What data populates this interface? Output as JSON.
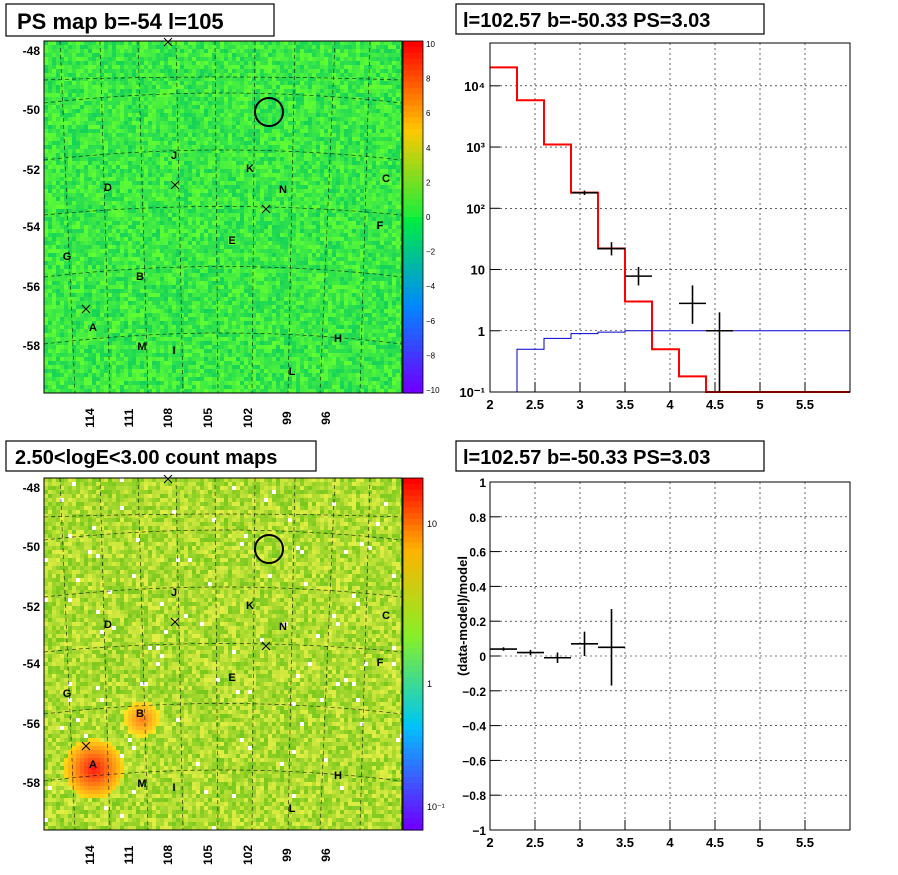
{
  "panels": {
    "tl": {
      "title": "PS map b=-54 l=105",
      "y_ticks": [
        "-48",
        "-50",
        "-52",
        "-54",
        "-56",
        "-58"
      ],
      "x_ticks": [
        "114",
        "111",
        "108",
        "105",
        "102",
        "99",
        "96"
      ],
      "colorbar_ticks": [
        "10",
        "8",
        "6",
        "4",
        "2",
        "0",
        "−2",
        "−4",
        "−6",
        "−8",
        "−10"
      ],
      "source_labels": [
        "J",
        "K",
        "D",
        "N",
        "C",
        "F",
        "E",
        "G",
        "B",
        "A",
        "H",
        "M",
        "I",
        "L"
      ]
    },
    "bl": {
      "title": "2.50<logE<3.00 count maps",
      "y_ticks": [
        "-48",
        "-50",
        "-52",
        "-54",
        "-56",
        "-58"
      ],
      "x_ticks": [
        "114",
        "111",
        "108",
        "105",
        "102",
        "99",
        "96"
      ],
      "colorbar_ticks": [
        "10",
        "1",
        "10⁻¹"
      ],
      "source_labels": [
        "J",
        "K",
        "D",
        "N",
        "C",
        "F",
        "E",
        "G",
        "B",
        "A",
        "H",
        "M",
        "I",
        "L"
      ]
    },
    "tr": {
      "title": "l=102.57 b=-50.33 PS=3.03"
    },
    "br": {
      "title": "l=102.57 b=-50.33 PS=3.03"
    }
  },
  "chart_data": [
    {
      "type": "heatmap",
      "title": "PS map b=-54 l=105",
      "colorscale_range": [
        -10,
        10
      ],
      "colors": {
        "low": "#6a00ff",
        "mid": "#00e050",
        "high": "#ff0000",
        "background": "#22ee55"
      },
      "x_tick_labels": [
        "114",
        "111",
        "108",
        "105",
        "102",
        "99",
        "96"
      ],
      "y_tick_labels": [
        "-48",
        "-50",
        "-52",
        "-54",
        "-56",
        "-58"
      ]
    },
    {
      "type": "line",
      "title": "l=102.57 b=-50.33 PS=3.03",
      "xlim": [
        2,
        6
      ],
      "ylim": [
        0.1,
        50000
      ],
      "yscale": "log",
      "x_ticks": [
        "2",
        "2.5",
        "3",
        "3.5",
        "4",
        "4.5",
        "5",
        "5.5"
      ],
      "y_ticks": [
        "10⁻¹",
        "1",
        "10",
        "10²",
        "10³",
        "10⁴"
      ],
      "series": [
        {
          "style": "histogram",
          "color": "#ff0000",
          "bin_edges": [
            2.0,
            2.3,
            2.6,
            2.9,
            3.2,
            3.5,
            3.8,
            4.1,
            4.4,
            6.0
          ],
          "values": [
            20000,
            5800,
            1100,
            180,
            22,
            3.0,
            0.5,
            0.18,
            0.1
          ]
        },
        {
          "style": "histogram",
          "color": "#0000cc",
          "bin_edges": [
            2.0,
            2.3,
            2.6,
            2.9,
            3.2,
            3.5,
            3.8,
            6.0
          ],
          "values": [
            0.1,
            0.5,
            0.75,
            0.9,
            0.95,
            1.0,
            1.0
          ]
        },
        {
          "style": "errorbars",
          "color": "#000000",
          "points": [
            {
              "x": 3.05,
              "xerr": 0.15,
              "y": 180,
              "ylo": 165,
              "yhi": 195
            },
            {
              "x": 3.35,
              "xerr": 0.15,
              "y": 22,
              "ylo": 17,
              "yhi": 28
            },
            {
              "x": 3.65,
              "xerr": 0.15,
              "y": 7.8,
              "ylo": 5.5,
              "yhi": 11
            },
            {
              "x": 4.25,
              "xerr": 0.15,
              "y": 2.8,
              "ylo": 1.3,
              "yhi": 5.5
            },
            {
              "x": 4.55,
              "xerr": 0.15,
              "y": 1.0,
              "ylo": 0.1,
              "yhi": 2.0
            }
          ]
        }
      ]
    },
    {
      "type": "heatmap",
      "title": "2.50<logE<3.00 count maps",
      "colorscale": "log",
      "colorscale_range": [
        0.05,
        40
      ],
      "colors": {
        "low": "#6a00ff",
        "mid": "#aaee44",
        "high": "#ff0000",
        "background": "#99e040"
      },
      "x_tick_labels": [
        "114",
        "111",
        "108",
        "105",
        "102",
        "99",
        "96"
      ],
      "y_tick_labels": [
        "-48",
        "-50",
        "-52",
        "-54",
        "-56",
        "-58"
      ]
    },
    {
      "type": "scatter",
      "title": "l=102.57 b=-50.33 PS=3.03",
      "ylabel": "(data-model)/model",
      "xlim": [
        2,
        6
      ],
      "ylim": [
        -1,
        1
      ],
      "x_ticks": [
        "2",
        "2.5",
        "3",
        "3.5",
        "4",
        "4.5",
        "5",
        "5.5"
      ],
      "y_ticks": [
        "1",
        "0.8",
        "0.6",
        "0.4",
        "0.2",
        "0",
        "−0.2",
        "−0.4",
        "−0.6",
        "−0.8",
        "−1"
      ],
      "series": [
        {
          "style": "errorbars",
          "color": "#000000",
          "points": [
            {
              "x": 2.15,
              "xerr": 0.15,
              "y": 0.04,
              "yerr": 0.01
            },
            {
              "x": 2.45,
              "xerr": 0.15,
              "y": 0.02,
              "yerr": 0.015
            },
            {
              "x": 2.75,
              "xerr": 0.15,
              "y": -0.01,
              "yerr": 0.03
            },
            {
              "x": 3.05,
              "xerr": 0.15,
              "y": 0.07,
              "yerr": 0.07
            },
            {
              "x": 3.35,
              "xerr": 0.15,
              "y": 0.05,
              "yerr": 0.22
            }
          ]
        }
      ]
    }
  ]
}
